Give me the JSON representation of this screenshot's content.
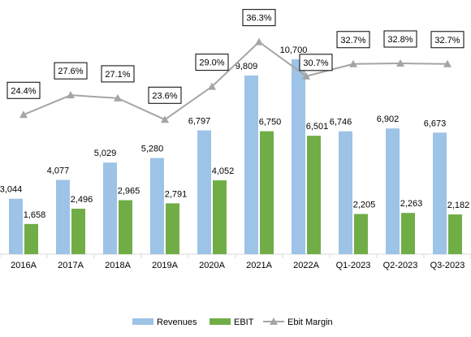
{
  "chart_data": {
    "type": "bar",
    "categories": [
      "2016A",
      "2017A",
      "2018A",
      "2019A",
      "2020A",
      "2021A",
      "2022A",
      "Q1-2023",
      "Q2-2023",
      "Q3-2023"
    ],
    "series": [
      {
        "name": "Revenues",
        "kind": "bar",
        "color": "#9dc3e6",
        "values": [
          3044,
          4077,
          5029,
          5280,
          6797,
          9809,
          10700,
          6746,
          6902,
          6673
        ],
        "labels": [
          "3,044",
          "4,077",
          "5,029",
          "5,280",
          "6,797",
          "9,809",
          "10,700",
          "6,746",
          "6,902",
          "6,673"
        ]
      },
      {
        "name": "EBIT",
        "kind": "bar",
        "color": "#70ad47",
        "values": [
          1658,
          2496,
          2965,
          2791,
          4052,
          6750,
          6501,
          2205,
          2263,
          2182
        ],
        "labels": [
          "1,658",
          "2,496",
          "2,965",
          "2,791",
          "4,052",
          "6,750",
          "6,501",
          "2,205",
          "2,263",
          "2,182"
        ]
      },
      {
        "name": "Ebit Margin",
        "kind": "line",
        "axis": "secondary",
        "color": "#a5a5a5",
        "marker": "triangle",
        "values": [
          24.4,
          27.6,
          27.1,
          23.6,
          29.0,
          36.3,
          30.7,
          32.7,
          32.8,
          32.7
        ],
        "labels": [
          "24.4%",
          "27.6%",
          "27.1%",
          "23.6%",
          "29.0%",
          "36.3%",
          "30.7%",
          "32.7%",
          "32.8%",
          "32.7%"
        ]
      }
    ],
    "ylim": [
      0,
      11500
    ],
    "y2lim": [
      0,
      45
    ],
    "grid": false,
    "legend": "bottom",
    "title": "",
    "xlabel": "",
    "ylabel": ""
  }
}
